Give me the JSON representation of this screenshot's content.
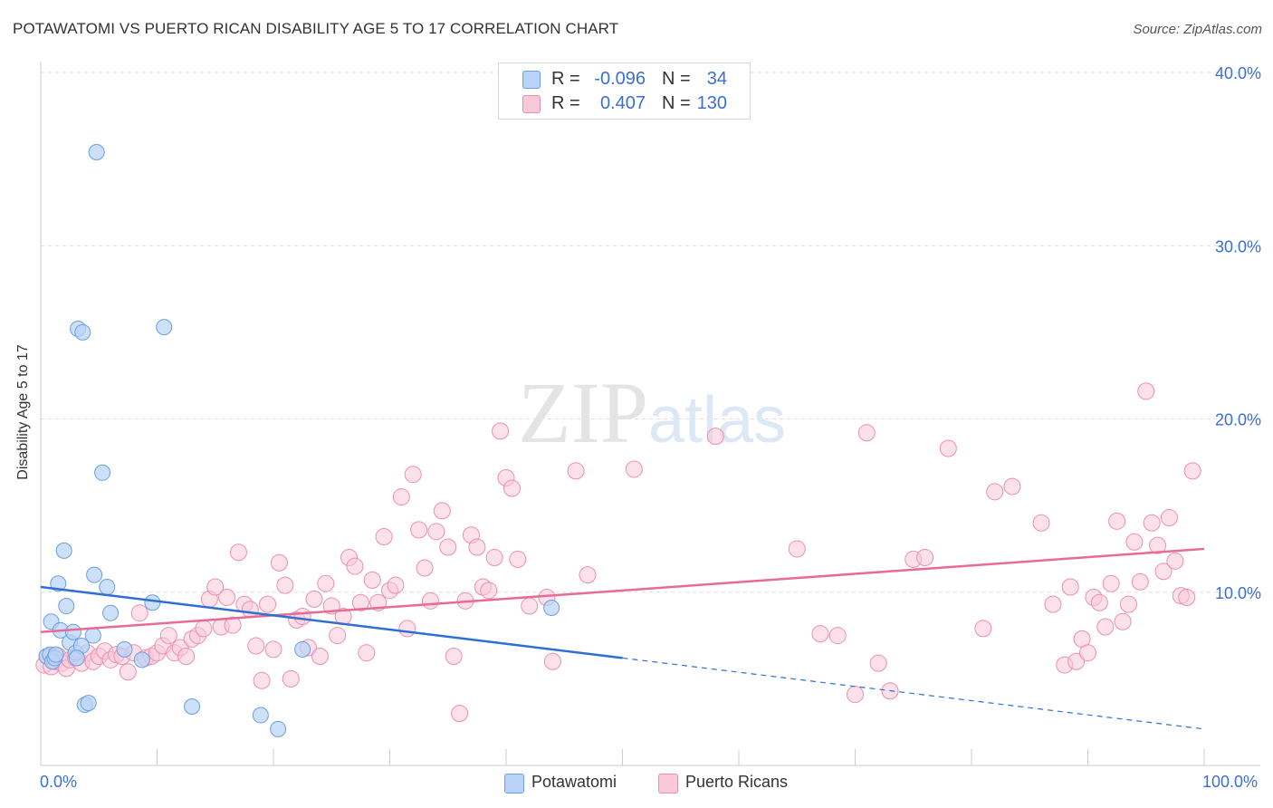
{
  "title": "POTAWATOMI VS PUERTO RICAN DISABILITY AGE 5 TO 17 CORRELATION CHART",
  "source": "Source: ZipAtlas.com",
  "watermark": "ZIPatlas",
  "legend": {
    "rows": [
      {
        "r_label": "R =",
        "r_value": "-0.096",
        "n_label": "N =",
        "n_value": "34"
      },
      {
        "r_label": "R =",
        "r_value": "0.407",
        "n_label": "N =",
        "n_value": "130"
      }
    ]
  },
  "bottom_legend": [
    "Potawatomi",
    "Puerto Ricans"
  ],
  "colors": {
    "potawatomi_fill": "#b8d3f7",
    "potawatomi_stroke": "#6a9fe0",
    "potawatomi_line": "#2f6fd4",
    "pr_fill": "#f9c9d8",
    "pr_stroke": "#ec8fae",
    "pr_line": "#e86a96",
    "axis_text": "#3a6fd6",
    "grid": "#dddddd"
  },
  "chart_data": {
    "type": "scatter",
    "title": "POTAWATOMI VS PUERTO RICAN DISABILITY AGE 5 TO 17 CORRELATION CHART",
    "xlabel": "",
    "ylabel": "Disability Age 5 to 17",
    "xlim": [
      0,
      100
    ],
    "ylim": [
      0,
      40
    ],
    "x_tick_labels": [
      "0.0%",
      "100.0%"
    ],
    "y_ticks": [
      10,
      20,
      30,
      40
    ],
    "y_tick_labels": [
      "10.0%",
      "20.0%",
      "30.0%",
      "40.0%"
    ],
    "series": [
      {
        "name": "Potawatomi",
        "r": -0.096,
        "n": 34,
        "points": [
          [
            0.5,
            6.3
          ],
          [
            0.8,
            6.4
          ],
          [
            1.0,
            6.0
          ],
          [
            0.9,
            8.3
          ],
          [
            1.2,
            6.2
          ],
          [
            1.5,
            10.5
          ],
          [
            1.7,
            7.8
          ],
          [
            2.0,
            12.4
          ],
          [
            2.2,
            9.2
          ],
          [
            2.5,
            7.1
          ],
          [
            2.8,
            7.7
          ],
          [
            3.0,
            6.5
          ],
          [
            3.2,
            25.2
          ],
          [
            3.6,
            25.0
          ],
          [
            3.5,
            6.9
          ],
          [
            3.8,
            3.5
          ],
          [
            4.1,
            3.6
          ],
          [
            4.5,
            7.5
          ],
          [
            4.6,
            11.0
          ],
          [
            5.3,
            16.9
          ],
          [
            5.7,
            10.3
          ],
          [
            6.0,
            8.8
          ],
          [
            7.2,
            6.7
          ],
          [
            8.7,
            6.1
          ],
          [
            9.6,
            9.4
          ],
          [
            10.6,
            25.3
          ],
          [
            13.0,
            3.4
          ],
          [
            18.9,
            2.9
          ],
          [
            20.4,
            2.1
          ],
          [
            22.5,
            6.7
          ],
          [
            43.9,
            9.1
          ],
          [
            4.8,
            35.4
          ],
          [
            1.3,
            6.4
          ],
          [
            3.1,
            6.2
          ]
        ],
        "trend": {
          "x0": 0,
          "y0": 10.3,
          "x1": 50,
          "y1": 6.2,
          "dash_to_x": 100,
          "dash_to_y": 2.1
        }
      },
      {
        "name": "Puerto Ricans",
        "r": 0.407,
        "n": 130,
        "points": [
          [
            0.3,
            5.8
          ],
          [
            0.6,
            6.3
          ],
          [
            0.9,
            5.7
          ],
          [
            1.2,
            6.0
          ],
          [
            1.5,
            6.3
          ],
          [
            1.8,
            5.9
          ],
          [
            2.2,
            5.6
          ],
          [
            2.5,
            6.1
          ],
          [
            3.0,
            6.2
          ],
          [
            3.5,
            5.9
          ],
          [
            4.0,
            6.5
          ],
          [
            4.5,
            6.0
          ],
          [
            5.0,
            6.3
          ],
          [
            5.5,
            6.6
          ],
          [
            6.0,
            6.1
          ],
          [
            6.5,
            6.4
          ],
          [
            7.0,
            6.3
          ],
          [
            7.5,
            5.4
          ],
          [
            8.0,
            6.5
          ],
          [
            8.5,
            8.8
          ],
          [
            9.0,
            6.2
          ],
          [
            9.5,
            6.3
          ],
          [
            10.0,
            6.5
          ],
          [
            10.5,
            6.9
          ],
          [
            11.0,
            7.5
          ],
          [
            11.5,
            6.5
          ],
          [
            12.0,
            6.8
          ],
          [
            12.5,
            6.3
          ],
          [
            13.0,
            7.3
          ],
          [
            13.5,
            7.5
          ],
          [
            14.0,
            7.9
          ],
          [
            14.5,
            9.6
          ],
          [
            15.0,
            10.3
          ],
          [
            15.5,
            8.0
          ],
          [
            16.0,
            9.7
          ],
          [
            16.5,
            8.1
          ],
          [
            17.0,
            12.3
          ],
          [
            17.5,
            9.3
          ],
          [
            18.0,
            9.0
          ],
          [
            18.5,
            6.9
          ],
          [
            19.0,
            4.9
          ],
          [
            19.5,
            9.3
          ],
          [
            20.0,
            6.7
          ],
          [
            20.5,
            11.7
          ],
          [
            21.0,
            10.4
          ],
          [
            21.5,
            5.0
          ],
          [
            22.0,
            8.4
          ],
          [
            22.5,
            8.6
          ],
          [
            23.0,
            6.8
          ],
          [
            23.5,
            9.6
          ],
          [
            24.0,
            6.3
          ],
          [
            24.5,
            10.5
          ],
          [
            25.0,
            9.2
          ],
          [
            25.5,
            7.5
          ],
          [
            26.0,
            8.6
          ],
          [
            26.5,
            12.0
          ],
          [
            27.0,
            11.5
          ],
          [
            27.5,
            9.4
          ],
          [
            28.0,
            6.5
          ],
          [
            28.5,
            10.7
          ],
          [
            29.0,
            9.4
          ],
          [
            29.5,
            13.2
          ],
          [
            30.0,
            10.1
          ],
          [
            30.5,
            10.4
          ],
          [
            31.0,
            15.5
          ],
          [
            31.5,
            7.9
          ],
          [
            32.0,
            16.8
          ],
          [
            32.5,
            13.6
          ],
          [
            33.0,
            11.4
          ],
          [
            33.5,
            9.5
          ],
          [
            34.0,
            13.5
          ],
          [
            34.5,
            14.7
          ],
          [
            35.0,
            12.6
          ],
          [
            35.5,
            6.3
          ],
          [
            36.0,
            3.0
          ],
          [
            36.5,
            9.5
          ],
          [
            37.0,
            13.3
          ],
          [
            37.5,
            12.6
          ],
          [
            38.0,
            10.3
          ],
          [
            38.5,
            10.1
          ],
          [
            39.0,
            12.0
          ],
          [
            39.5,
            19.3
          ],
          [
            40.0,
            16.6
          ],
          [
            40.5,
            16.0
          ],
          [
            41.0,
            11.9
          ],
          [
            42.0,
            9.2
          ],
          [
            43.5,
            9.7
          ],
          [
            44.0,
            6.0
          ],
          [
            46.0,
            17.0
          ],
          [
            47.0,
            11.0
          ],
          [
            51.0,
            17.1
          ],
          [
            58.0,
            19.0
          ],
          [
            65.0,
            12.5
          ],
          [
            67.0,
            7.6
          ],
          [
            68.5,
            7.5
          ],
          [
            70.0,
            4.1
          ],
          [
            71.0,
            19.2
          ],
          [
            72.0,
            5.9
          ],
          [
            73.0,
            4.3
          ],
          [
            75.0,
            11.9
          ],
          [
            76.0,
            12.0
          ],
          [
            78.0,
            18.3
          ],
          [
            81.0,
            7.9
          ],
          [
            82.0,
            15.8
          ],
          [
            83.5,
            16.1
          ],
          [
            86.0,
            14.0
          ],
          [
            87.0,
            9.3
          ],
          [
            88.0,
            5.8
          ],
          [
            88.5,
            10.3
          ],
          [
            89.0,
            6.0
          ],
          [
            89.5,
            7.3
          ],
          [
            90.0,
            6.5
          ],
          [
            90.5,
            9.7
          ],
          [
            91.0,
            9.4
          ],
          [
            91.5,
            8.0
          ],
          [
            92.0,
            10.5
          ],
          [
            92.5,
            14.1
          ],
          [
            93.0,
            8.3
          ],
          [
            93.5,
            9.3
          ],
          [
            94.0,
            12.9
          ],
          [
            94.5,
            10.6
          ],
          [
            95.0,
            21.6
          ],
          [
            95.5,
            14.0
          ],
          [
            96.0,
            12.7
          ],
          [
            96.5,
            11.2
          ],
          [
            97.0,
            14.3
          ],
          [
            97.5,
            11.8
          ],
          [
            98.0,
            9.8
          ],
          [
            98.5,
            9.7
          ],
          [
            99.0,
            17.0
          ]
        ],
        "trend": {
          "x0": 0,
          "y0": 7.7,
          "x1": 100,
          "y1": 12.5
        }
      }
    ]
  }
}
